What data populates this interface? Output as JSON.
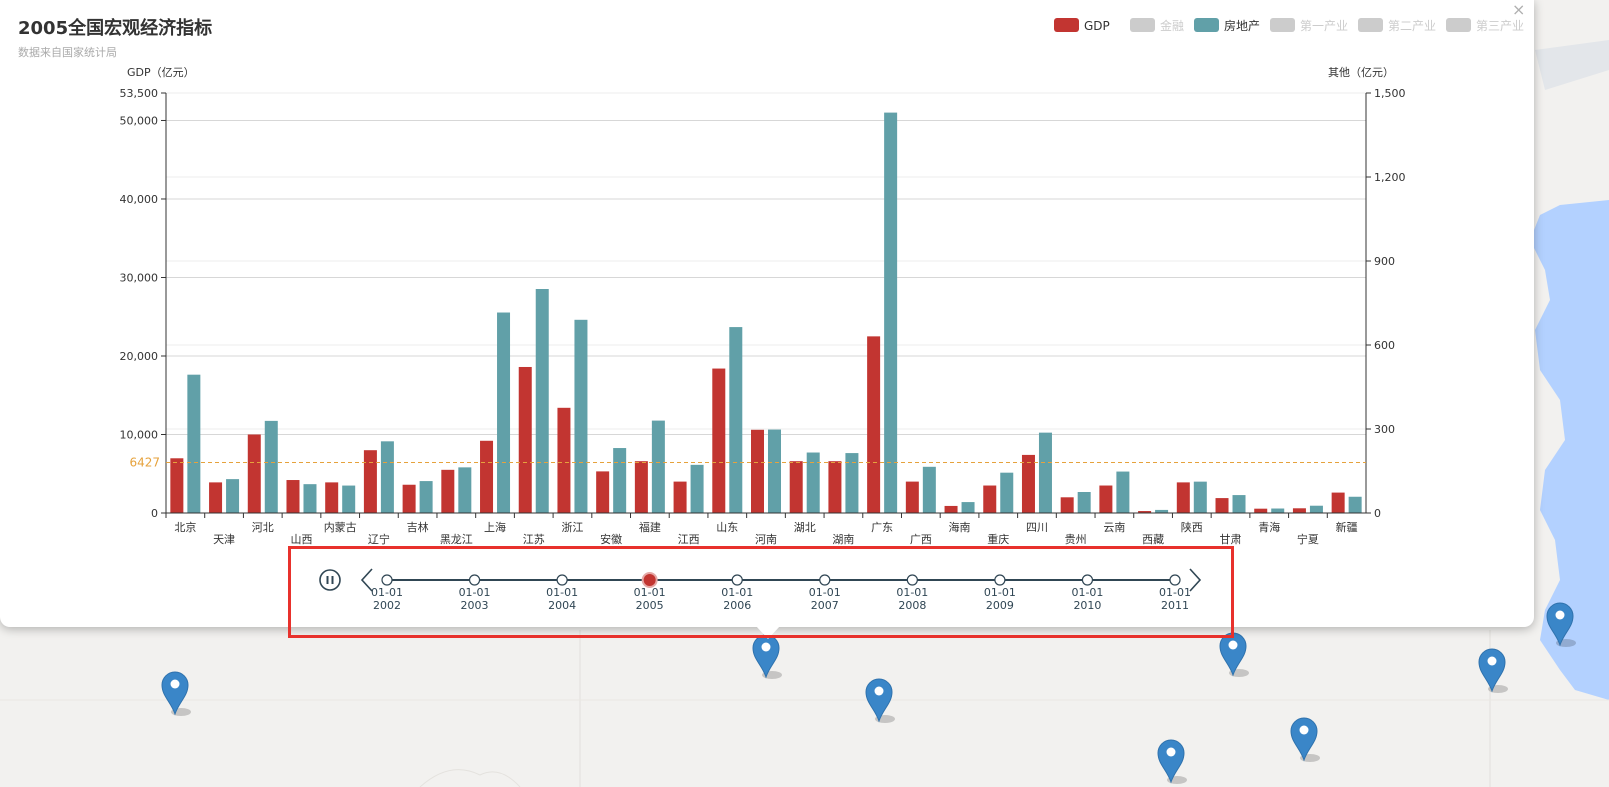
{
  "popup": {
    "close_label": "×"
  },
  "chart_data": {
    "type": "bar",
    "title": "2005全国宏观经济指标",
    "subtitle": "数据来自国家统计局",
    "categories": [
      "北京",
      "天津",
      "河北",
      "山西",
      "内蒙古",
      "辽宁",
      "吉林",
      "黑龙江",
      "上海",
      "江苏",
      "浙江",
      "安徽",
      "福建",
      "江西",
      "山东",
      "河南",
      "湖北",
      "湖南",
      "广东",
      "广西",
      "海南",
      "重庆",
      "四川",
      "贵州",
      "云南",
      "西藏",
      "陕西",
      "甘肃",
      "青海",
      "宁夏",
      "新疆"
    ],
    "y_left": {
      "label": "GDP（亿元）",
      "ticks": [
        "0",
        "10,000",
        "20,000",
        "30,000",
        "40,000",
        "50,000",
        "53,500"
      ],
      "tick_values": [
        0,
        10000,
        20000,
        30000,
        40000,
        50000,
        53500
      ],
      "max": 53500
    },
    "y_right": {
      "label": "其他（亿元）",
      "ticks": [
        "0",
        "300",
        "600",
        "900",
        "1,200",
        "1,500"
      ],
      "tick_values": [
        0,
        300,
        600,
        900,
        1200,
        1500
      ],
      "max": 1500
    },
    "mark_line": {
      "label": "6427",
      "value": 6427,
      "axis": "left",
      "color": "#e6a23c"
    },
    "legend": [
      {
        "name": "GDP",
        "color": "#c23531",
        "active": true
      },
      {
        "name": "金融",
        "color": "#cccccc",
        "active": false
      },
      {
        "name": "房地产",
        "color": "#61a0a8",
        "active": true
      },
      {
        "name": "第一产业",
        "color": "#cccccc",
        "active": false
      },
      {
        "name": "第二产业",
        "color": "#cccccc",
        "active": false
      },
      {
        "name": "第三产业",
        "color": "#cccccc",
        "active": false
      }
    ],
    "legend_placement": "top-right",
    "series": [
      {
        "name": "GDP",
        "axis": "left",
        "color": "#c23531",
        "values": [
          6970,
          3900,
          10000,
          4200,
          3900,
          8000,
          3600,
          5500,
          9200,
          18600,
          13400,
          5300,
          6600,
          4000,
          18400,
          10600,
          6600,
          6600,
          22500,
          4000,
          900,
          3500,
          7400,
          2000,
          3500,
          250,
          3900,
          1900,
          550,
          600,
          2600
        ]
      },
      {
        "name": "房地产",
        "axis": "right",
        "color": "#61a0a8",
        "values": [
          494,
          121,
          329,
          103,
          98,
          256,
          114,
          163,
          716,
          800,
          690,
          232,
          330,
          172,
          664,
          298,
          216,
          214,
          1430,
          165,
          39,
          144,
          287,
          75,
          148,
          11,
          112,
          64,
          16,
          26,
          58
        ]
      }
    ],
    "timeline": {
      "items": [
        {
          "line1": "01-01",
          "line2": "2002"
        },
        {
          "line1": "01-01",
          "line2": "2003"
        },
        {
          "line1": "01-01",
          "line2": "2004"
        },
        {
          "line1": "01-01",
          "line2": "2005"
        },
        {
          "line1": "01-01",
          "line2": "2006"
        },
        {
          "line1": "01-01",
          "line2": "2007"
        },
        {
          "line1": "01-01",
          "line2": "2008"
        },
        {
          "line1": "01-01",
          "line2": "2009"
        },
        {
          "line1": "01-01",
          "line2": "2010"
        },
        {
          "line1": "01-01",
          "line2": "2011"
        }
      ],
      "current_index": 3,
      "playing": true,
      "icons": {
        "play": "pause-icon",
        "prev": "chevron-left-icon",
        "next": "chevron-right-icon"
      }
    }
  },
  "map": {
    "marker_icon": "map-pin-icon",
    "colors": {
      "land": "#f2f1ef",
      "water": "#b3d1ff",
      "pin": "#3a86c8"
    }
  }
}
